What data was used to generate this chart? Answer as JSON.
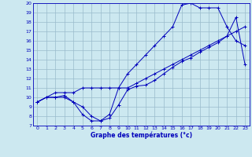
{
  "xlabel": "Graphe des températures (°c)",
  "xlim": [
    -0.5,
    23.5
  ],
  "ylim": [
    7,
    20
  ],
  "xticks": [
    0,
    1,
    2,
    3,
    4,
    5,
    6,
    7,
    8,
    9,
    10,
    11,
    12,
    13,
    14,
    15,
    16,
    17,
    18,
    19,
    20,
    21,
    22,
    23
  ],
  "yticks": [
    7,
    8,
    9,
    10,
    11,
    12,
    13,
    14,
    15,
    16,
    17,
    18,
    19,
    20
  ],
  "bg_color": "#cce8f0",
  "line_color": "#0000bb",
  "grid_color": "#99bbcc",
  "line1_x": [
    0,
    1,
    2,
    3,
    4,
    5,
    6,
    7,
    8,
    9,
    10,
    11,
    12,
    13,
    14,
    15,
    16,
    17,
    18,
    19,
    20,
    21,
    22,
    23
  ],
  "line1_y": [
    9.5,
    10,
    10,
    10,
    9.5,
    8.2,
    7.5,
    7.5,
    7.8,
    9.2,
    10.8,
    11.2,
    11.3,
    11.8,
    12.5,
    13.2,
    13.8,
    14.2,
    14.8,
    15.3,
    15.8,
    16.5,
    18.5,
    13.5
  ],
  "line2_x": [
    0,
    2,
    3,
    4,
    5,
    6,
    7,
    8,
    9,
    10,
    11,
    12,
    13,
    14,
    15,
    16,
    17,
    18,
    19,
    20,
    21,
    22,
    23
  ],
  "line2_y": [
    9.5,
    10.5,
    10.5,
    10.5,
    11.0,
    11.0,
    11.0,
    11.0,
    11.0,
    11.0,
    11.5,
    12.0,
    12.5,
    13.0,
    13.5,
    14.0,
    14.5,
    15.0,
    15.5,
    16.0,
    16.5,
    17.0,
    17.5
  ],
  "line3_x": [
    0,
    1,
    2,
    3,
    4,
    5,
    6,
    7,
    8,
    9,
    10,
    11,
    12,
    13,
    14,
    15,
    16,
    17,
    18,
    19,
    20,
    21,
    22,
    23
  ],
  "line3_y": [
    9.5,
    10.0,
    10.0,
    10.2,
    9.5,
    9.0,
    8.0,
    7.5,
    8.2,
    11.0,
    12.5,
    13.5,
    14.5,
    15.5,
    16.5,
    17.5,
    19.8,
    20.0,
    19.5,
    19.5,
    19.5,
    17.5,
    16.0,
    15.5
  ]
}
